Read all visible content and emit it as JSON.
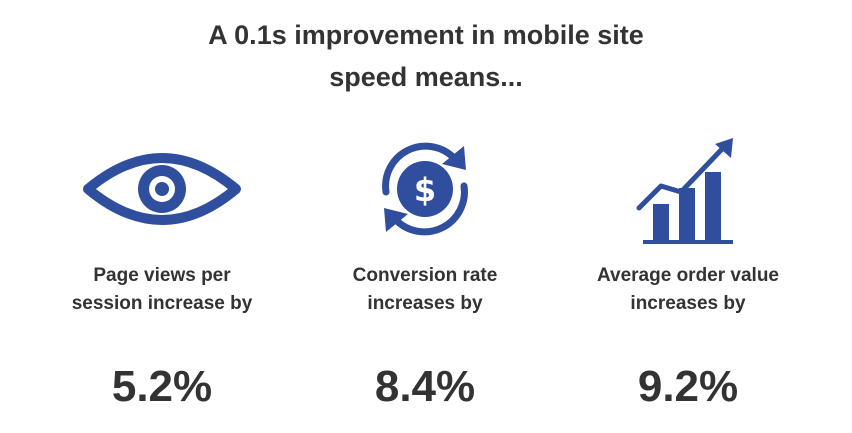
{
  "headline": {
    "line1": "A 0.1s improvement in mobile site",
    "line2": "speed means..."
  },
  "accent_color": "#2f4f9e",
  "stats": [
    {
      "icon": "eye-icon",
      "label_line1": "Page views per",
      "label_line2": "session increase by",
      "value": "5.2%"
    },
    {
      "icon": "dollar-cycle-icon",
      "label_line1": "Conversion rate",
      "label_line2": "increases by",
      "value": "8.4%"
    },
    {
      "icon": "growth-chart-icon",
      "label_line1": "Average order value",
      "label_line2": "increases by",
      "value": "9.2%"
    }
  ]
}
